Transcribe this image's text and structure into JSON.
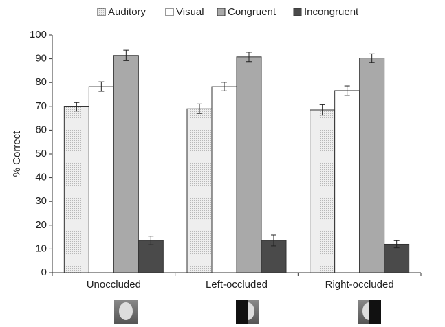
{
  "chart_data": {
    "type": "bar",
    "y_label": "% Correct",
    "categories": [
      "Unoccluded",
      "Left-occluded",
      "Right-occluded"
    ],
    "series": [
      {
        "name": "Auditory",
        "color": "#e4e4e4",
        "values": [
          69.8,
          69.0,
          68.5
        ],
        "errors": [
          1.8,
          2.0,
          2.2
        ]
      },
      {
        "name": "Visual",
        "color": "#ffffff",
        "values": [
          78.3,
          78.3,
          76.6
        ],
        "errors": [
          2.0,
          1.8,
          2.0
        ]
      },
      {
        "name": "Congruent",
        "color": "#a9a9a9",
        "values": [
          91.4,
          90.8,
          90.3
        ],
        "errors": [
          2.2,
          2.0,
          1.8
        ]
      },
      {
        "name": "Incongruent",
        "color": "#4a4a4a",
        "values": [
          13.6,
          13.6,
          12.0
        ],
        "errors": [
          1.8,
          2.3,
          1.5
        ]
      }
    ],
    "ylim": [
      0,
      100
    ],
    "yticks": [
      0,
      10,
      20,
      30,
      40,
      50,
      60,
      70,
      80,
      90,
      100
    ],
    "grid": false,
    "legend": "top"
  }
}
